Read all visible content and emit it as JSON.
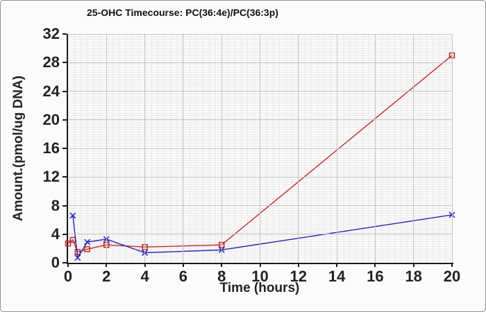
{
  "figure": {
    "background": "#fbfbfb",
    "border_color": "#8f8f8f",
    "axis_color": "#1a1a1a",
    "text_color": "#222222",
    "grid_major_color": "#c6c6c6",
    "grid_minor_color": "#e9e9e9"
  },
  "chart_data": {
    "type": "line",
    "title": "25-OHC Timecourse: PC(36:4e)/PC(36:3p)",
    "xlabel": "Time (hours)",
    "ylabel": "Amount.(pmol/ug DNA)",
    "xlim": [
      0,
      20
    ],
    "ylim": [
      0,
      32
    ],
    "x_ticks": [
      0,
      2,
      4,
      6,
      8,
      10,
      12,
      14,
      16,
      18,
      20
    ],
    "y_ticks": [
      0,
      4,
      8,
      12,
      16,
      20,
      24,
      28,
      32
    ],
    "grid": "fine minor graph-paper grid on, major gridlines at every tick",
    "legend": "none",
    "series": [
      {
        "name": "red-open-squares",
        "color": "#cc2222",
        "marker": "open-square",
        "x": [
          0,
          0.25,
          0.5,
          1,
          2,
          4,
          8,
          20
        ],
        "y": [
          2.7,
          3.2,
          1.5,
          1.9,
          2.5,
          2.2,
          2.5,
          29.0
        ]
      },
      {
        "name": "blue-x-crosses",
        "color": "#2020c0",
        "marker": "x",
        "x": [
          0.25,
          0.5,
          1,
          2,
          4,
          8,
          20
        ],
        "y": [
          6.6,
          0.7,
          2.9,
          3.3,
          1.4,
          1.8,
          6.7
        ]
      }
    ]
  }
}
